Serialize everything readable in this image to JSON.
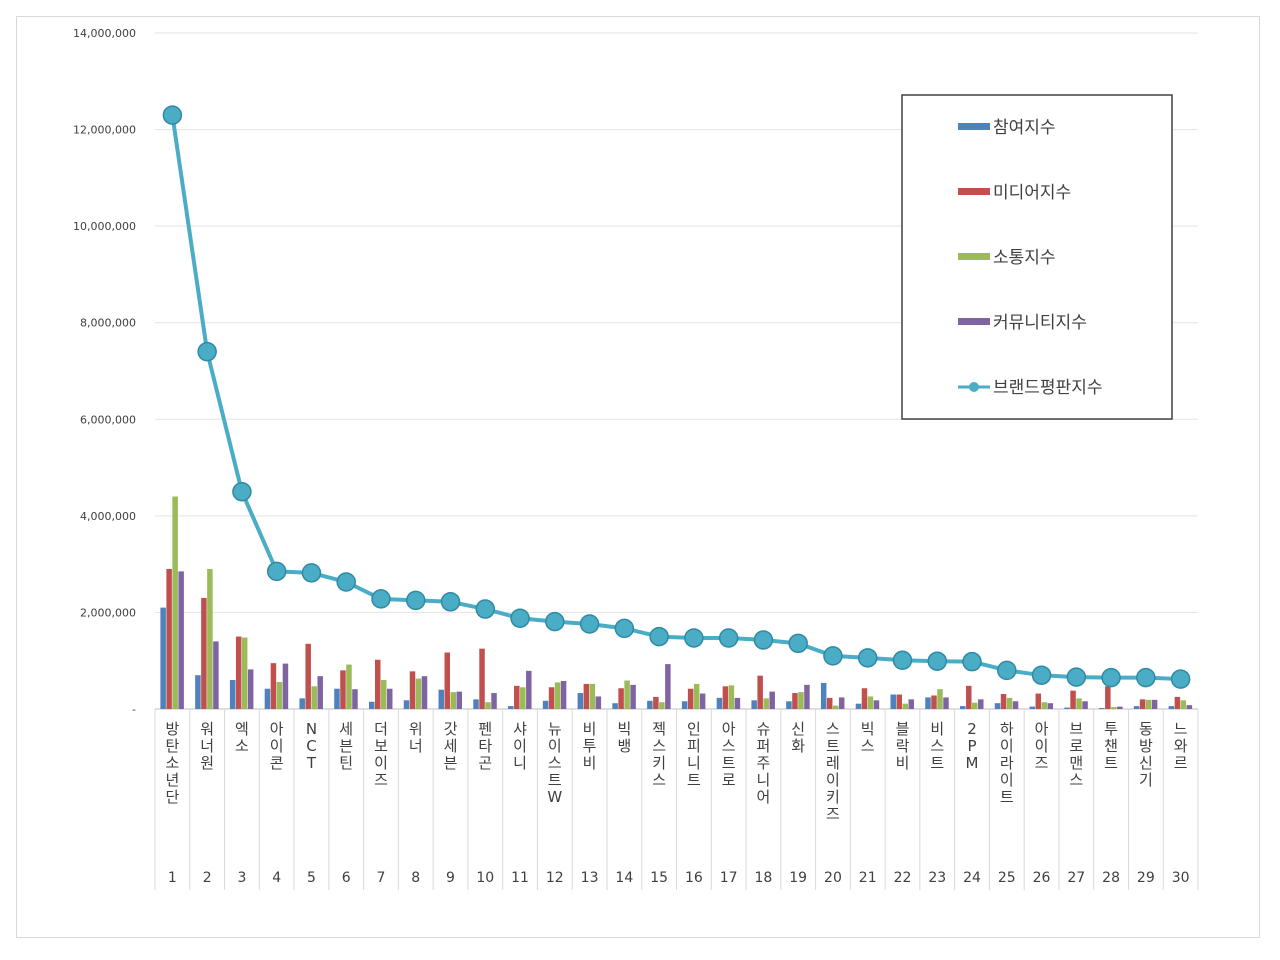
{
  "chart_data": {
    "type": "bar",
    "y_tick_labels": [
      "-",
      "2,000,000",
      "4,000,000",
      "6,000,000",
      "8,000,000",
      "10,000,000",
      "12,000,000",
      "14,000,000"
    ],
    "ylim": [
      0,
      14000000
    ],
    "grid": true,
    "legend_position": "top-right",
    "ranks": [
      "1",
      "2",
      "3",
      "4",
      "5",
      "6",
      "7",
      "8",
      "9",
      "10",
      "11",
      "12",
      "13",
      "14",
      "15",
      "16",
      "17",
      "18",
      "19",
      "20",
      "21",
      "22",
      "23",
      "24",
      "25",
      "26",
      "27",
      "28",
      "29",
      "30"
    ],
    "categories": [
      "방탄소년단",
      "워너원",
      "엑소",
      "아이콘",
      "NCT",
      "세븐틴",
      "더보이즈",
      "위너",
      "갓세븐",
      "펜타곤",
      "샤이니",
      "뉴이스트W",
      "비투비",
      "빅뱅",
      "젝스키스",
      "인피니트",
      "아스트로",
      "슈퍼주니어",
      "신화",
      "스트레이키즈",
      "빅스",
      "블락비",
      "비스트",
      "2PM",
      "하이라이트",
      "아이즈",
      "브로맨스",
      "투챈트",
      "동방신기",
      "느와르"
    ],
    "series": [
      {
        "name": "참여지수",
        "type": "bar",
        "color": "#4f81bd",
        "values": [
          2100000,
          700000,
          600000,
          420000,
          220000,
          420000,
          150000,
          180000,
          400000,
          200000,
          60000,
          170000,
          330000,
          120000,
          170000,
          160000,
          230000,
          180000,
          160000,
          540000,
          110000,
          300000,
          240000,
          60000,
          120000,
          50000,
          30000,
          20000,
          60000,
          60000
        ]
      },
      {
        "name": "미디어지수",
        "type": "bar",
        "color": "#c0504d",
        "values": [
          2900000,
          2300000,
          1500000,
          950000,
          1350000,
          800000,
          1020000,
          780000,
          1170000,
          1250000,
          480000,
          450000,
          520000,
          430000,
          250000,
          420000,
          470000,
          690000,
          330000,
          230000,
          430000,
          300000,
          280000,
          480000,
          310000,
          320000,
          380000,
          470000,
          200000,
          250000
        ]
      },
      {
        "name": "소통지수",
        "type": "bar",
        "color": "#9bbb59",
        "values": [
          4400000,
          2900000,
          1480000,
          560000,
          470000,
          920000,
          600000,
          630000,
          350000,
          140000,
          450000,
          550000,
          520000,
          590000,
          140000,
          520000,
          490000,
          220000,
          350000,
          70000,
          260000,
          110000,
          410000,
          130000,
          230000,
          140000,
          220000,
          40000,
          190000,
          180000
        ]
      },
      {
        "name": "커뮤니티지수",
        "type": "bar",
        "color": "#8064a2",
        "values": [
          2850000,
          1400000,
          820000,
          940000,
          680000,
          410000,
          420000,
          680000,
          360000,
          330000,
          790000,
          580000,
          260000,
          500000,
          930000,
          320000,
          230000,
          360000,
          500000,
          240000,
          180000,
          200000,
          240000,
          200000,
          160000,
          120000,
          160000,
          50000,
          190000,
          80000
        ]
      },
      {
        "name": "브랜드평판지수",
        "type": "line",
        "color": "#4bacc6",
        "values": [
          12300000,
          7400000,
          4500000,
          2850000,
          2820000,
          2630000,
          2280000,
          2250000,
          2220000,
          2070000,
          1880000,
          1810000,
          1760000,
          1670000,
          1500000,
          1470000,
          1470000,
          1430000,
          1360000,
          1100000,
          1060000,
          1010000,
          990000,
          980000,
          800000,
          700000,
          660000,
          650000,
          650000,
          620000
        ]
      }
    ]
  }
}
